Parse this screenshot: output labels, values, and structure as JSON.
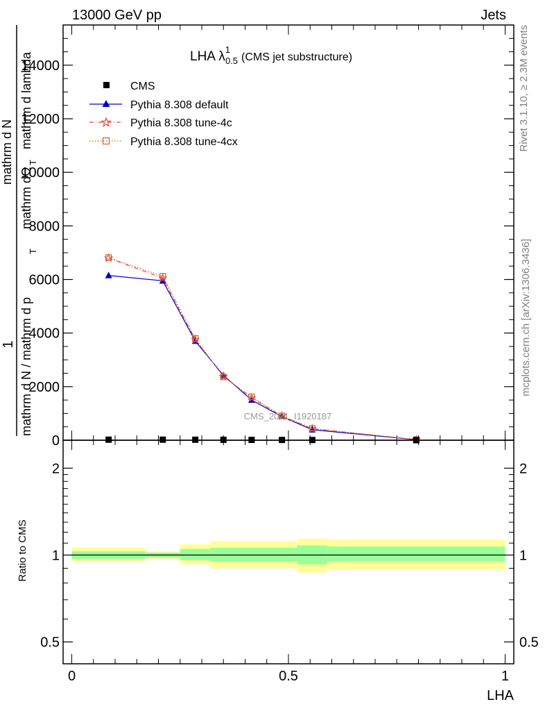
{
  "header": {
    "left": "13000 GeV pp",
    "right": "Jets"
  },
  "side_text": {
    "rivet": "Rivet 3.1.10, ≥ 2.3M events",
    "mcplots": "mcplots.cern.ch [arXiv:1306.3436]"
  },
  "colors": {
    "cms": "#000000",
    "default": "#0000cc",
    "tune4c": "#e8493f",
    "tune4cx": "#c86428",
    "band_stat": "#99ff99",
    "band_total": "#ffff99"
  },
  "chart_data": [
    {
      "type": "line",
      "title_main": "LHA λ",
      "title_sup": "1",
      "title_sub": "0.5",
      "title_rest": "(CMS jet substructure)",
      "ylabel_parts": [
        "1",
        "mathrm d N / mathrm d p",
        "T",
        "mathrm d N",
        "mathrm dΩ",
        "mathrm d lambda"
      ],
      "ylabel_small": "T",
      "ylim": [
        0,
        15500
      ],
      "xlim": [
        -0.02,
        1.02
      ],
      "y_ticks": [
        0,
        2000,
        4000,
        6000,
        8000,
        10000,
        12000,
        14000
      ],
      "y_tick_labels": [
        "0",
        "2000",
        "4000",
        "6000",
        "8000",
        "10000",
        "12000",
        "14000"
      ],
      "watermark": "CMS_2021_I1920187",
      "legend_position": "top-left",
      "series": [
        {
          "name": "CMS",
          "marker": "square",
          "x": [
            0.085,
            0.21,
            0.285,
            0.35,
            0.415,
            0.485,
            0.555,
            0.795
          ],
          "y": [
            20,
            20,
            18,
            15,
            12,
            10,
            8,
            2
          ]
        },
        {
          "name": "Pythia 8.308 default",
          "marker": "triangle",
          "x": [
            0.085,
            0.21,
            0.285,
            0.35,
            0.415,
            0.485,
            0.555,
            0.795
          ],
          "y": [
            6150,
            5950,
            3700,
            2420,
            1500,
            880,
            390,
            20
          ]
        },
        {
          "name": "Pythia 8.308 tune-4c",
          "marker": "star",
          "x": [
            0.085,
            0.21,
            0.285,
            0.35,
            0.415,
            0.485,
            0.555,
            0.795
          ],
          "y": [
            6800,
            6050,
            3760,
            2380,
            1580,
            900,
            430,
            22
          ]
        },
        {
          "name": "Pythia 8.308 tune-4cx",
          "marker": "open-square",
          "x": [
            0.085,
            0.21,
            0.285,
            0.35,
            0.415,
            0.485,
            0.555,
            0.795
          ],
          "y": [
            6820,
            6120,
            3800,
            2360,
            1620,
            910,
            440,
            22
          ]
        }
      ]
    },
    {
      "type": "area",
      "ylabel": "Ratio to CMS",
      "xlabel": "LHA",
      "scale": "log",
      "ylim": [
        0.42,
        2.5
      ],
      "xlim": [
        -0.02,
        1.02
      ],
      "y_ticks": [
        0.5,
        1,
        2
      ],
      "y_tick_labels": [
        "0.5",
        "1",
        "2"
      ],
      "x_ticks": [
        0,
        0.5,
        1
      ],
      "x_tick_labels": [
        "0",
        "0.5",
        "1"
      ],
      "bins": [
        {
          "x0": 0.0,
          "x1": 0.17,
          "stat_lo": 0.97,
          "stat_hi": 1.03,
          "tot_lo": 0.95,
          "tot_hi": 1.06
        },
        {
          "x0": 0.17,
          "x1": 0.25,
          "stat_lo": 0.98,
          "stat_hi": 1.02,
          "tot_lo": 0.97,
          "tot_hi": 1.03
        },
        {
          "x0": 0.25,
          "x1": 0.32,
          "stat_lo": 0.96,
          "stat_hi": 1.05,
          "tot_lo": 0.93,
          "tot_hi": 1.09
        },
        {
          "x0": 0.32,
          "x1": 0.52,
          "stat_lo": 0.95,
          "stat_hi": 1.06,
          "tot_lo": 0.9,
          "tot_hi": 1.12
        },
        {
          "x0": 0.52,
          "x1": 0.59,
          "stat_lo": 0.93,
          "stat_hi": 1.08,
          "tot_lo": 0.87,
          "tot_hi": 1.14
        },
        {
          "x0": 0.59,
          "x1": 1.0,
          "stat_lo": 0.95,
          "stat_hi": 1.07,
          "tot_lo": 0.89,
          "tot_hi": 1.13
        }
      ],
      "reference": 1
    }
  ]
}
